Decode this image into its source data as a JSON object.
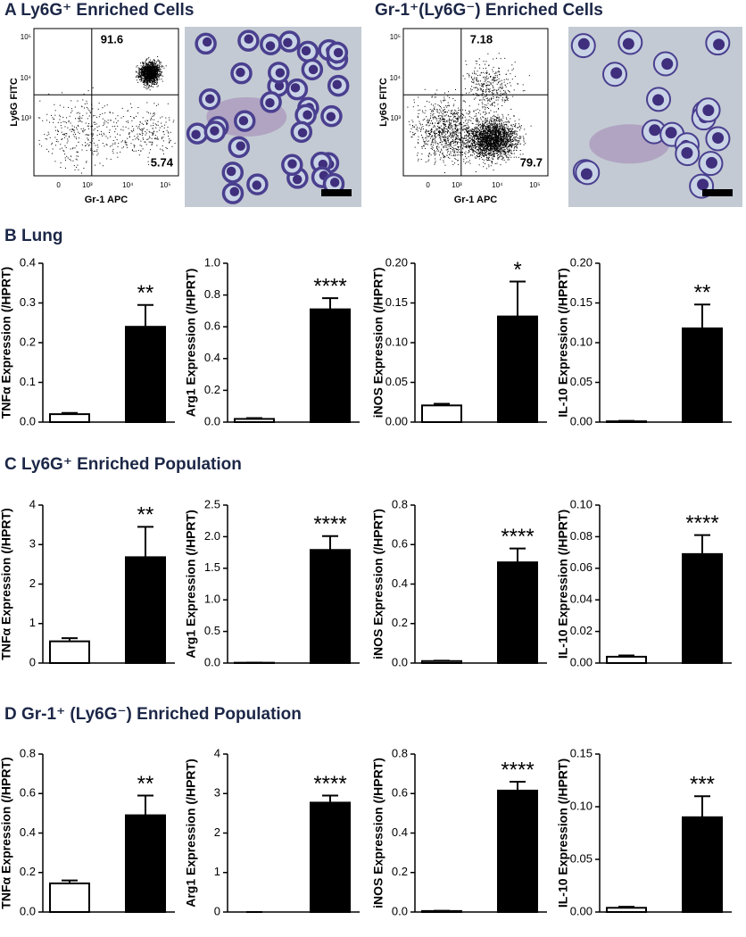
{
  "panel_a": [
    {
      "title": "A Ly6G⁺ Enriched Cells",
      "xlabel": "Gr-1 APC",
      "ylabel": "Ly6G FITC",
      "upper_right": 91.6,
      "lower_right": 5.74,
      "xtick_labels": [
        "0",
        "10³",
        "10⁴",
        "10⁵"
      ],
      "ytick_labels": [
        "10⁵",
        "10⁴",
        "10³"
      ]
    },
    {
      "title": "Gr-1⁺(Ly6G⁻) Enriched Cells",
      "xlabel": "Gr-1 APC",
      "ylabel": "Ly6G FITC",
      "upper_right": 7.18,
      "lower_right": 79.7,
      "xtick_labels": [
        "0",
        "10³",
        "10⁴",
        "10⁵"
      ],
      "ytick_labels": [
        "10⁵",
        "10⁴",
        "10³"
      ]
    }
  ],
  "sections": [
    "B Lung",
    "C Ly6G⁺ Enriched Population",
    "D Gr-1⁺ (Ly6G⁻) Enriched Population"
  ],
  "chart_data": [
    {
      "type": "bar",
      "ylabel": "TNFα Expression (/HPRT)",
      "categories": [
        null,
        null
      ],
      "values": [
        0.02,
        0.24
      ],
      "errors": [
        0.003,
        0.055
      ],
      "colors": [
        "#ffffff",
        "#000000"
      ],
      "annotation": "**",
      "ylim": [
        0,
        0.4
      ],
      "yticks": [
        {
          "value": 0,
          "label": "0.0"
        },
        0.1,
        0.2,
        0.3,
        0.4
      ]
    },
    {
      "type": "bar",
      "ylabel": "Arg1 Expression (/HPRT)",
      "categories": [
        null,
        null
      ],
      "values": [
        0.02,
        0.71
      ],
      "errors": [
        0.005,
        0.07
      ],
      "colors": [
        "#ffffff",
        "#000000"
      ],
      "annotation": "****",
      "ylim": [
        0,
        1.0
      ],
      "yticks": [
        {
          "value": 0,
          "label": "0.0"
        },
        0.2,
        0.4,
        0.6,
        0.8,
        {
          "value": 1,
          "label": "1.0"
        }
      ]
    },
    {
      "type": "bar",
      "ylabel": "iNOS Expression (/HPRT)",
      "categories": [
        null,
        null
      ],
      "values": [
        0.021,
        0.133
      ],
      "errors": [
        0.002,
        0.044
      ],
      "colors": [
        "#ffffff",
        "#000000"
      ],
      "annotation": "*",
      "ylim": [
        0,
        0.2
      ],
      "yticks": [
        {
          "value": 0,
          "label": "0.00"
        },
        0.05,
        {
          "value": 0.1,
          "label": "0.10"
        },
        0.15,
        {
          "value": 0.2,
          "label": "0.20"
        }
      ]
    },
    {
      "type": "bar",
      "ylabel": "IL-10 Expression (/HPRT)",
      "categories": [
        null,
        null
      ],
      "values": [
        0.001,
        0.118
      ],
      "errors": [
        0.0005,
        0.03
      ],
      "colors": [
        "#ffffff",
        "#000000"
      ],
      "annotation": "**",
      "ylim": [
        0,
        0.2
      ],
      "yticks": [
        {
          "value": 0,
          "label": "0.00"
        },
        0.05,
        {
          "value": 0.1,
          "label": "0.10"
        },
        0.15,
        {
          "value": 0.2,
          "label": "0.20"
        }
      ]
    },
    {
      "type": "bar",
      "ylabel": "TNFα Expression (/HPRT)",
      "categories": [
        null,
        null
      ],
      "values": [
        0.55,
        2.68
      ],
      "errors": [
        0.08,
        0.77
      ],
      "colors": [
        "#ffffff",
        "#000000"
      ],
      "annotation": "**",
      "ylim": [
        0,
        4
      ],
      "yticks": [
        0,
        1,
        2,
        3,
        4
      ]
    },
    {
      "type": "bar",
      "ylabel": "Arg1 Expression (/HPRT)",
      "categories": [
        null,
        null
      ],
      "values": [
        0.005,
        1.79
      ],
      "errors": [
        0,
        0.22
      ],
      "colors": [
        "#ffffff",
        "#000000"
      ],
      "annotation": "****",
      "ylim": [
        0,
        2.5
      ],
      "yticks": [
        {
          "value": 0,
          "label": "0.0"
        },
        0.5,
        {
          "value": 1,
          "label": "1.0"
        },
        1.5,
        {
          "value": 2,
          "label": "2.0"
        },
        2.5
      ]
    },
    {
      "type": "bar",
      "ylabel": "iNOS Expression (/HPRT)",
      "categories": [
        null,
        null
      ],
      "values": [
        0.01,
        0.51
      ],
      "errors": [
        0.002,
        0.07
      ],
      "colors": [
        "#ffffff",
        "#000000"
      ],
      "annotation": "****",
      "ylim": [
        0,
        0.8
      ],
      "yticks": [
        {
          "value": 0,
          "label": "0.0"
        },
        0.2,
        0.4,
        0.6,
        0.8
      ]
    },
    {
      "type": "bar",
      "ylabel": "IL-10 Expression (/HPRT)",
      "categories": [
        null,
        null
      ],
      "values": [
        0.004,
        0.069
      ],
      "errors": [
        0.0008,
        0.012
      ],
      "colors": [
        "#ffffff",
        "#000000"
      ],
      "annotation": "****",
      "ylim": [
        0,
        0.1
      ],
      "yticks": [
        {
          "value": 0,
          "label": "0.00"
        },
        0.02,
        0.04,
        0.06,
        0.08,
        {
          "value": 0.1,
          "label": "0.10"
        }
      ]
    },
    {
      "type": "bar",
      "ylabel": "TNFα Expression (/HPRT)",
      "categories": [
        null,
        null
      ],
      "values": [
        0.145,
        0.49
      ],
      "errors": [
        0.015,
        0.1
      ],
      "colors": [
        "#ffffff",
        "#000000"
      ],
      "annotation": "**",
      "ylim": [
        0,
        0.8
      ],
      "yticks": [
        {
          "value": 0,
          "label": "0.0"
        },
        0.2,
        0.4,
        0.6,
        0.8
      ]
    },
    {
      "type": "bar",
      "ylabel": "Arg1 Expression (/HPRT)",
      "categories": [
        null,
        null
      ],
      "values": [
        0,
        2.77
      ],
      "errors": [
        0,
        0.18
      ],
      "colors": [
        "#ffffff",
        "#000000"
      ],
      "annotation": "****",
      "ylim": [
        0,
        4
      ],
      "yticks": [
        0,
        1,
        2,
        3,
        4
      ]
    },
    {
      "type": "bar",
      "ylabel": "iNOS Expression (/HPRT)",
      "categories": [
        null,
        null
      ],
      "values": [
        0.005,
        0.615
      ],
      "errors": [
        0.001,
        0.045
      ],
      "colors": [
        "#ffffff",
        "#000000"
      ],
      "annotation": "****",
      "ylim": [
        0,
        0.8
      ],
      "yticks": [
        {
          "value": 0,
          "label": "0.0"
        },
        0.2,
        0.4,
        0.6,
        0.8
      ]
    },
    {
      "type": "bar",
      "ylabel": "IL-10 Expression (/HPRT)",
      "categories": [
        null,
        null
      ],
      "values": [
        0.004,
        0.09
      ],
      "errors": [
        0.001,
        0.02
      ],
      "colors": [
        "#ffffff",
        "#000000"
      ],
      "annotation": "***",
      "ylim": [
        0,
        0.15
      ],
      "yticks": [
        {
          "value": 0,
          "label": "0.00"
        },
        0.05,
        {
          "value": 0.1,
          "label": "0.10"
        },
        0.15
      ]
    }
  ]
}
